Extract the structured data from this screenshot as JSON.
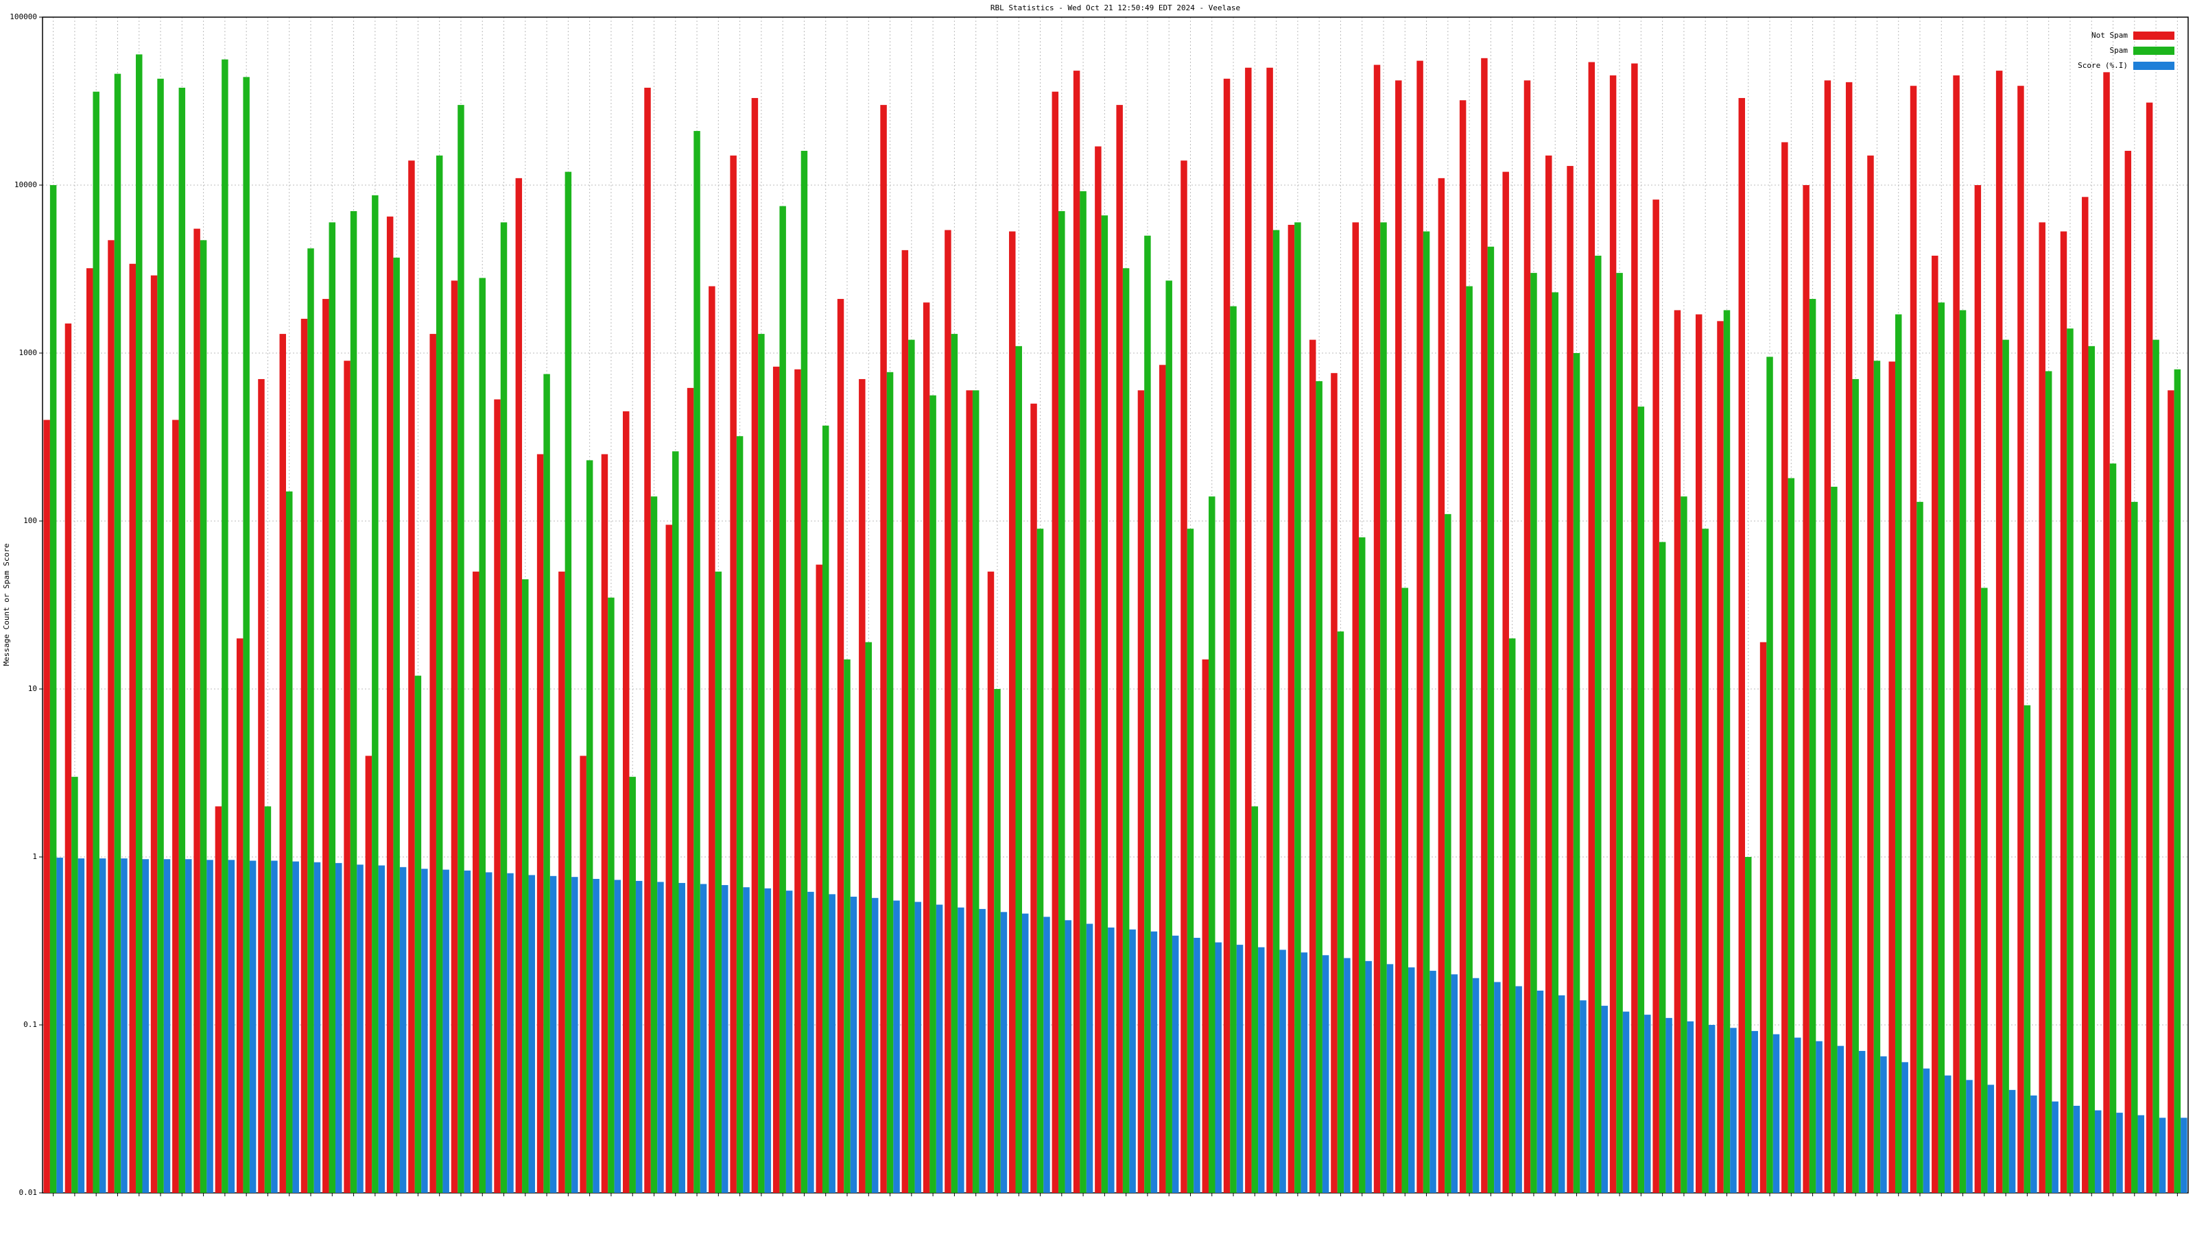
{
  "chart_data": {
    "type": "bar",
    "title": "RBL Statistics - Wed Oct 21 12:50:49 EDT 2024 - Veelase",
    "y_label": "Message Count or Spam Score",
    "log_scale": true,
    "grid": true,
    "legend": "top-right",
    "ylim": [
      0.01,
      100000
    ],
    "yticks": [
      0.01,
      0.1,
      1,
      10,
      100,
      1000,
      10000,
      100000
    ],
    "categories": [
      null,
      null,
      null,
      null,
      null,
      null,
      null,
      null,
      null,
      null,
      null,
      null,
      null,
      null,
      null,
      null,
      null,
      null,
      null,
      null,
      null,
      null,
      null,
      null,
      null,
      null,
      null,
      null,
      null,
      null,
      null,
      null,
      null,
      null,
      null,
      null,
      null,
      null,
      null,
      null,
      null,
      null,
      null,
      null,
      null,
      null,
      null,
      null,
      null,
      null,
      null,
      null,
      null,
      null,
      null,
      null,
      null,
      null,
      null,
      null,
      null,
      null,
      null,
      null,
      null,
      null,
      null,
      null,
      null,
      null,
      null,
      null,
      null,
      null,
      null,
      null,
      null,
      null,
      null,
      null,
      null,
      null,
      null,
      null,
      null,
      null,
      null,
      null,
      null,
      null,
      null,
      null,
      null,
      null,
      null,
      null,
      null,
      null,
      null,
      null
    ],
    "series": [
      {
        "name": "Not Spam",
        "color": "#e41a1c",
        "values": [
          400,
          1500,
          3200,
          4700,
          3400,
          2900,
          400,
          5500,
          2,
          20,
          700,
          1300,
          1600,
          2100,
          900,
          4,
          6500,
          14000,
          1300,
          2700,
          50,
          530,
          11000,
          250,
          50,
          4,
          250,
          450,
          38000,
          95,
          620,
          2500,
          15000,
          33000,
          830,
          800,
          55,
          2100,
          700,
          30000,
          4100,
          2000,
          5400,
          600,
          50,
          5300,
          500,
          36000,
          48000,
          17000,
          30000,
          600,
          850,
          14000,
          15,
          43000,
          50000,
          50000,
          5800,
          1200,
          760,
          6000,
          52000,
          42000,
          55000,
          11000,
          32000,
          57000,
          12000,
          42000,
          15000,
          13000,
          54000,
          45000,
          53000,
          8200,
          1800,
          1700,
          1550,
          33000,
          19,
          18000,
          10000,
          42000,
          41000,
          15000,
          890,
          39000,
          3800,
          45000,
          10000,
          48000,
          39000,
          6000,
          5300,
          8500,
          47000,
          16000,
          31000,
          600
        ]
      },
      {
        "name": "Spam",
        "color": "#1cb51c",
        "values": [
          10000,
          3,
          36000,
          46000,
          60000,
          43000,
          38000,
          4700,
          56000,
          44000,
          2,
          150,
          4200,
          6000,
          7000,
          8700,
          3700,
          12,
          15000,
          30000,
          2800,
          6000,
          45,
          750,
          12000,
          230,
          35,
          3,
          140,
          260,
          21000,
          50,
          320,
          1300,
          7500,
          16000,
          370,
          15,
          19,
          770,
          1200,
          560,
          1300,
          600,
          10,
          1100,
          90,
          7000,
          9200,
          6600,
          3200,
          5000,
          2700,
          90,
          140,
          1900,
          2,
          5400,
          6000,
          680,
          22,
          80,
          6000,
          40,
          5300,
          110,
          2500,
          4300,
          20,
          3000,
          2300,
          1000,
          3800,
          3000,
          480,
          75,
          140,
          90,
          1800,
          1,
          950,
          180,
          2100,
          160,
          700,
          900,
          1700,
          130,
          2000,
          1800,
          40,
          1200,
          8,
          780,
          1400,
          1100,
          220,
          130,
          1200,
          800
        ]
      },
      {
        "name": "Score (%.I)",
        "color": "#1e7fd8",
        "values": [
          0.99,
          0.98,
          0.98,
          0.98,
          0.97,
          0.97,
          0.97,
          0.96,
          0.96,
          0.95,
          0.95,
          0.94,
          0.93,
          0.92,
          0.9,
          0.89,
          0.87,
          0.85,
          0.84,
          0.83,
          0.81,
          0.8,
          0.78,
          0.77,
          0.76,
          0.74,
          0.73,
          0.72,
          0.71,
          0.7,
          0.69,
          0.68,
          0.66,
          0.65,
          0.63,
          0.62,
          0.6,
          0.58,
          0.57,
          0.55,
          0.54,
          0.52,
          0.5,
          0.49,
          0.47,
          0.46,
          0.44,
          0.42,
          0.4,
          0.38,
          0.37,
          0.36,
          0.34,
          0.33,
          0.31,
          0.3,
          0.29,
          0.28,
          0.27,
          0.26,
          0.25,
          0.24,
          0.23,
          0.22,
          0.21,
          0.2,
          0.19,
          0.18,
          0.17,
          0.16,
          0.15,
          0.14,
          0.13,
          0.12,
          0.115,
          0.11,
          0.105,
          0.1,
          0.096,
          0.092,
          0.088,
          0.084,
          0.08,
          0.075,
          0.07,
          0.065,
          0.06,
          0.055,
          0.05,
          0.047,
          0.044,
          0.041,
          0.038,
          0.035,
          0.033,
          0.031,
          0.03,
          0.029,
          0.028,
          0.028
        ]
      }
    ]
  }
}
